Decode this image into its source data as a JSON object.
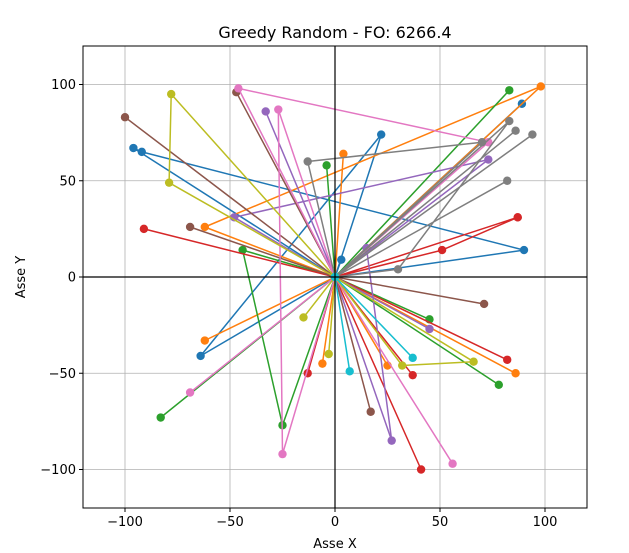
{
  "chart_data": {
    "type": "line",
    "title": "Greedy Random - FO: 6266.4",
    "xlabel": "Asse X",
    "ylabel": "Asse Y",
    "xlim": [
      -120,
      120
    ],
    "ylim": [
      -120,
      120
    ],
    "xticks": [
      -100,
      -50,
      0,
      50,
      100
    ],
    "yticks": [
      -100,
      -50,
      0,
      50,
      100
    ],
    "xtick_labels": [
      "−100",
      "−50",
      "0",
      "50",
      "100"
    ],
    "ytick_labels": [
      "−100",
      "−50",
      "0",
      "50",
      "100"
    ],
    "grid": true,
    "origin_axes": true,
    "series": [
      {
        "color": "#1f77b4",
        "points": [
          [
            0,
            0
          ],
          [
            -64,
            -41
          ],
          [
            22,
            74
          ],
          [
            0,
            0
          ],
          [
            90,
            14
          ],
          [
            -92,
            65
          ],
          [
            -96,
            67
          ],
          [
            0,
            0
          ],
          [
            3,
            9
          ],
          [
            0,
            0
          ],
          [
            89,
            90
          ]
        ]
      },
      {
        "color": "#ff7f0e",
        "points": [
          [
            0,
            0
          ],
          [
            -62,
            -33
          ],
          [
            0,
            0
          ],
          [
            98,
            99
          ],
          [
            -62,
            26
          ],
          [
            0,
            0
          ],
          [
            -6,
            -45
          ],
          [
            0,
            0
          ],
          [
            4,
            64
          ],
          [
            0,
            0
          ],
          [
            25,
            -46
          ],
          [
            0,
            0
          ],
          [
            86,
            -50
          ]
        ]
      },
      {
        "color": "#2ca02c",
        "points": [
          [
            0,
            0
          ],
          [
            -44,
            14
          ],
          [
            -25,
            -77
          ],
          [
            0,
            0
          ],
          [
            -83,
            -73
          ],
          [
            0,
            0
          ],
          [
            -4,
            58
          ],
          [
            0,
            0
          ],
          [
            45,
            -22
          ],
          [
            0,
            0
          ],
          [
            78,
            -56
          ],
          [
            0,
            0
          ],
          [
            83,
            97
          ],
          [
            0,
            0
          ]
        ]
      },
      {
        "color": "#d62728",
        "points": [
          [
            0,
            0
          ],
          [
            -91,
            25
          ],
          [
            0,
            0
          ],
          [
            87,
            31
          ],
          [
            0,
            0
          ],
          [
            -13,
            -50
          ],
          [
            0,
            0
          ],
          [
            37,
            -51
          ],
          [
            0,
            0
          ],
          [
            41,
            -100
          ],
          [
            0,
            0
          ],
          [
            51,
            14
          ],
          [
            87,
            31
          ],
          [
            0,
            0
          ],
          [
            82,
            -43
          ]
        ]
      },
      {
        "color": "#9467bd",
        "points": [
          [
            0,
            0
          ],
          [
            -33,
            86
          ],
          [
            0,
            0
          ],
          [
            -48,
            31
          ],
          [
            73,
            61
          ],
          [
            0,
            0
          ],
          [
            45,
            -27
          ],
          [
            0,
            0
          ],
          [
            15,
            15
          ],
          [
            27,
            -85
          ],
          [
            0,
            0
          ]
        ]
      },
      {
        "color": "#8c564b",
        "points": [
          [
            0,
            0
          ],
          [
            -69,
            26
          ],
          [
            0,
            0
          ],
          [
            -100,
            83
          ],
          [
            0,
            0
          ],
          [
            -47,
            96
          ],
          [
            0,
            0
          ],
          [
            71,
            -14
          ],
          [
            0,
            0
          ],
          [
            17,
            -70
          ],
          [
            0,
            0
          ]
        ]
      },
      {
        "color": "#e377c2",
        "points": [
          [
            0,
            0
          ],
          [
            -27,
            87
          ],
          [
            -25,
            -92
          ],
          [
            0,
            0
          ],
          [
            -46,
            98
          ],
          [
            73,
            70
          ],
          [
            0,
            0
          ],
          [
            -69,
            -60
          ],
          [
            0,
            0
          ],
          [
            56,
            -97
          ],
          [
            0,
            0
          ]
        ]
      },
      {
        "color": "#7f7f7f",
        "points": [
          [
            0,
            0
          ],
          [
            -13,
            60
          ],
          [
            70,
            70
          ],
          [
            0,
            0
          ],
          [
            30,
            4
          ],
          [
            83,
            81
          ],
          [
            0,
            0
          ],
          [
            86,
            76
          ],
          [
            0,
            0
          ],
          [
            94,
            74
          ],
          [
            0,
            0
          ],
          [
            82,
            50
          ],
          [
            0,
            0
          ]
        ]
      },
      {
        "color": "#bcbd22",
        "points": [
          [
            0,
            0
          ],
          [
            -78,
            95
          ],
          [
            -79,
            49
          ],
          [
            0,
            0
          ],
          [
            -15,
            -21
          ],
          [
            0,
            0
          ],
          [
            -3,
            -40
          ],
          [
            0,
            0
          ],
          [
            32,
            -46
          ],
          [
            66,
            -44
          ],
          [
            0,
            0
          ]
        ]
      },
      {
        "color": "#17becf",
        "points": [
          [
            0,
            0
          ],
          [
            7,
            -49
          ],
          [
            0,
            0
          ],
          [
            37,
            -42
          ],
          [
            0,
            0
          ]
        ]
      }
    ]
  }
}
